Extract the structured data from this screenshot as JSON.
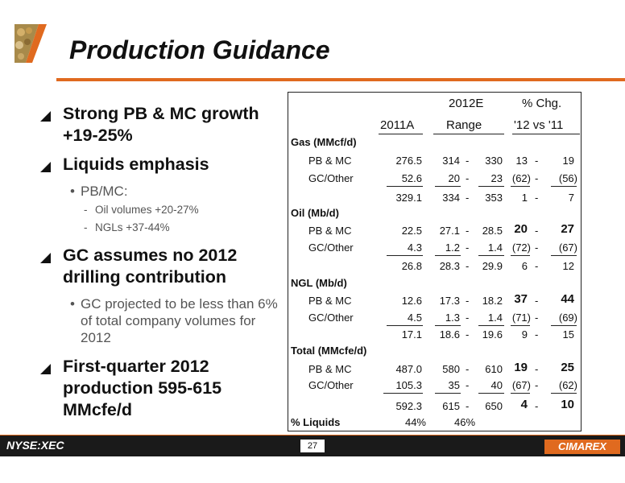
{
  "title": "Production Guidance",
  "left": {
    "b1": "Strong PB & MC growth +19-25%",
    "b2": "Liquids emphasis",
    "b2_sub": "PB/MC:",
    "b2_sub_items": [
      "Oil volumes +20-27%",
      "NGLs +37-44%"
    ],
    "b3": "GC assumes no 2012 drilling contribution",
    "b3_sub": "GC projected to be less than 6% of total company volumes for 2012",
    "b4": "First-quarter 2012 production 595-615 MMcfe/d"
  },
  "table": {
    "headers": {
      "col_2012e": "2012E",
      "col_chg": "% Chg.",
      "col_2011a": "2011A",
      "col_range": "Range",
      "col_1211": "'12 vs '11"
    },
    "gas_label": "Gas (MMcf/d)",
    "gas": [
      {
        "label": "PB & MC",
        "a": "276.5",
        "lo": "314",
        "hi": "330",
        "clo": "13",
        "chi": "19"
      },
      {
        "label": "GC/Other",
        "a": "52.6",
        "lo": "20",
        "hi": "23",
        "clo": "(62)",
        "chi": "(56)"
      },
      {
        "label": "",
        "a": "329.1",
        "lo": "334",
        "hi": "353",
        "clo": "1",
        "chi": "7"
      }
    ],
    "oil_label": "Oil (Mb/d)",
    "oil": [
      {
        "label": "PB & MC",
        "a": "22.5",
        "lo": "27.1",
        "hi": "28.5",
        "clo": "20",
        "chi": "27"
      },
      {
        "label": "GC/Other",
        "a": "4.3",
        "lo": "1.2",
        "hi": "1.4",
        "clo": "(72)",
        "chi": "(67)"
      },
      {
        "label": "",
        "a": "26.8",
        "lo": "28.3",
        "hi": "29.9",
        "clo": "6",
        "chi": "12"
      }
    ],
    "ngl_label": "NGL (Mb/d)",
    "ngl": [
      {
        "label": "PB & MC",
        "a": "12.6",
        "lo": "17.3",
        "hi": "18.2",
        "clo": "37",
        "chi": "44"
      },
      {
        "label": "GC/Other",
        "a": "4.5",
        "lo": "1.3",
        "hi": "1.4",
        "clo": "(71)",
        "chi": "(69)"
      },
      {
        "label": "",
        "a": "17.1",
        "lo": "18.6",
        "hi": "19.6",
        "clo": "9",
        "chi": "15"
      }
    ],
    "total_label": "Total  (MMcfe/d)",
    "total": [
      {
        "label": "PB & MC",
        "a": "487.0",
        "lo": "580",
        "hi": "610",
        "clo": "19",
        "chi": "25"
      },
      {
        "label": "GC/Other",
        "a": "105.3",
        "lo": "35",
        "hi": "40",
        "clo": "(67)",
        "chi": "(62)"
      },
      {
        "label": "",
        "a": "592.3",
        "lo": "615",
        "hi": "650",
        "clo": "4",
        "chi": "10"
      }
    ],
    "dash": "-",
    "liquids_label": "% Liquids",
    "liquids_2011": "44%",
    "liquids_2012": "46%"
  },
  "footer": {
    "ticker": "NYSE:XEC",
    "page": "27",
    "brand": "CIMAREX"
  }
}
